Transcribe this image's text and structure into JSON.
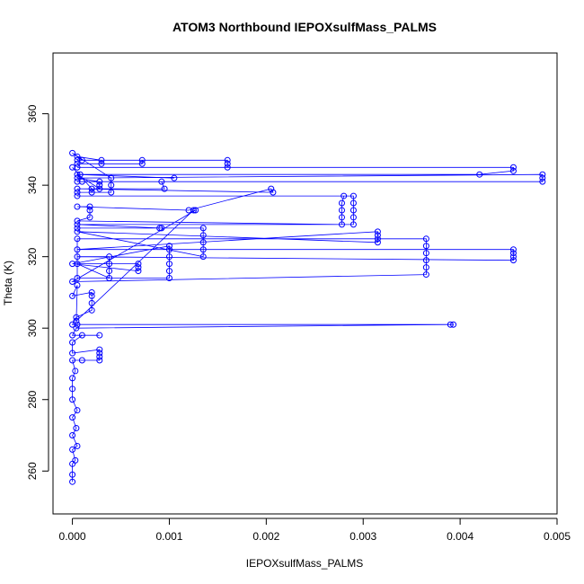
{
  "chart_data": {
    "type": "scatter",
    "title": "ATOM3 Northbound IEPOXsulfMass_PALMS",
    "xlabel": "IEPOXsulfMass_PALMS",
    "ylabel": "Theta (K)",
    "xlim": [
      -0.0002,
      0.005
    ],
    "ylim": [
      248,
      377
    ],
    "x_ticks": [
      0,
      0.001,
      0.002,
      0.003,
      0.004,
      0.005
    ],
    "x_tick_labels": [
      "0.000",
      "0.001",
      "0.002",
      "0.003",
      "0.004",
      "0.005"
    ],
    "y_ticks": [
      260,
      280,
      300,
      320,
      340,
      360
    ],
    "y_tick_labels": [
      "260",
      "280",
      "300",
      "320",
      "340",
      "360"
    ],
    "grid": false,
    "legend": "none",
    "series_color": "#0000ff",
    "marker": "open-circle",
    "connected": true,
    "points": [
      [
        0,
        257
      ],
      [
        0,
        259
      ],
      [
        0,
        262
      ],
      [
        3e-05,
        263
      ],
      [
        0,
        266
      ],
      [
        5e-05,
        267
      ],
      [
        0,
        270
      ],
      [
        4e-05,
        272
      ],
      [
        0,
        275
      ],
      [
        5e-05,
        277
      ],
      [
        0,
        280
      ],
      [
        0,
        283
      ],
      [
        0,
        286
      ],
      [
        3e-05,
        288
      ],
      [
        0,
        291
      ],
      [
        0.0001,
        291
      ],
      [
        0.00028,
        291
      ],
      [
        0.00028,
        292
      ],
      [
        0.00028,
        293
      ],
      [
        0.00028,
        294
      ],
      [
        0,
        293
      ],
      [
        0,
        296
      ],
      [
        0.0001,
        298
      ],
      [
        0.00028,
        298
      ],
      [
        0,
        298
      ],
      [
        4e-05,
        300
      ],
      [
        0.0039,
        301
      ],
      [
        0.00393,
        301
      ],
      [
        5e-05,
        301
      ],
      [
        0,
        301
      ],
      [
        4e-05,
        303
      ],
      [
        0.0002,
        305
      ],
      [
        0.0002,
        307
      ],
      [
        0.0002,
        309
      ],
      [
        0.0002,
        310
      ],
      [
        0,
        309
      ],
      [
        5e-05,
        312
      ],
      [
        4e-05,
        302
      ],
      [
        0.00125,
        333
      ],
      [
        0.00127,
        333
      ],
      [
        0,
        313
      ],
      [
        0.00365,
        315
      ],
      [
        0.00365,
        317
      ],
      [
        0.00365,
        319
      ],
      [
        0.00365,
        321
      ],
      [
        0.00365,
        323
      ],
      [
        0.00365,
        325
      ],
      [
        5e-05,
        325
      ],
      [
        5e-05,
        314
      ],
      [
        0.001,
        314
      ],
      [
        0.001,
        316
      ],
      [
        0.001,
        318
      ],
      [
        0.001,
        320
      ],
      [
        0.001,
        322
      ],
      [
        0.001,
        323
      ],
      [
        0,
        318
      ],
      [
        0.00068,
        316
      ],
      [
        0.00068,
        317
      ],
      [
        0.00068,
        318
      ],
      [
        5e-05,
        318
      ],
      [
        0.00038,
        314
      ],
      [
        0.00038,
        316
      ],
      [
        0.00038,
        318
      ],
      [
        0.00038,
        320
      ],
      [
        5e-05,
        320
      ],
      [
        0.00455,
        319
      ],
      [
        0.00455,
        320
      ],
      [
        0.00455,
        321
      ],
      [
        0.00455,
        322
      ],
      [
        5e-05,
        322
      ],
      [
        0.00315,
        327
      ],
      [
        0.00315,
        326
      ],
      [
        0.00315,
        325
      ],
      [
        0.00315,
        324
      ],
      [
        5e-05,
        327
      ],
      [
        0.00135,
        320
      ],
      [
        0.00135,
        322
      ],
      [
        0.00135,
        324
      ],
      [
        0.00135,
        326
      ],
      [
        0.00135,
        328
      ],
      [
        5e-05,
        328
      ],
      [
        0.0009,
        328
      ],
      [
        0.00092,
        328
      ],
      [
        5e-05,
        329
      ],
      [
        0.0029,
        329
      ],
      [
        0.0029,
        331
      ],
      [
        0.0029,
        333
      ],
      [
        0.0029,
        335
      ],
      [
        0.0029,
        337
      ],
      [
        5e-05,
        337
      ],
      [
        0.0028,
        337
      ],
      [
        0.00278,
        335
      ],
      [
        0.00278,
        333
      ],
      [
        0.00278,
        331
      ],
      [
        0.00278,
        329
      ],
      [
        5e-05,
        330
      ],
      [
        0.00018,
        331
      ],
      [
        0.00018,
        333
      ],
      [
        0.00018,
        334
      ],
      [
        5e-05,
        334
      ],
      [
        0.0012,
        333
      ],
      [
        0.00205,
        339
      ],
      [
        0.00207,
        338
      ],
      [
        5e-05,
        339
      ],
      [
        0.00095,
        339
      ],
      [
        0.00092,
        341
      ],
      [
        5e-05,
        341
      ],
      [
        0.0001,
        341
      ],
      [
        0.00485,
        341
      ],
      [
        0.00485,
        342
      ],
      [
        0.00485,
        343
      ],
      [
        5e-05,
        342
      ],
      [
        0.00028,
        341
      ],
      [
        0.00028,
        340
      ],
      [
        0.00028,
        339
      ],
      [
        5e-05,
        343
      ],
      [
        0.00105,
        342
      ],
      [
        8e-05,
        343
      ],
      [
        0.0042,
        343
      ],
      [
        0.00455,
        344
      ],
      [
        0.00455,
        345
      ],
      [
        5e-05,
        345
      ],
      [
        0.0016,
        345
      ],
      [
        0.0016,
        346
      ],
      [
        0.0016,
        347
      ],
      [
        5e-05,
        347
      ],
      [
        0.00072,
        347
      ],
      [
        0.00072,
        346
      ],
      [
        5e-05,
        346
      ],
      [
        0.0003,
        346
      ],
      [
        0.0003,
        347
      ],
      [
        5e-05,
        348
      ],
      [
        0.0001,
        347
      ],
      [
        0,
        349
      ],
      [
        0.0004,
        342
      ],
      [
        0.0004,
        340
      ],
      [
        0.0004,
        338
      ],
      [
        5e-05,
        338
      ],
      [
        0.0002,
        338
      ],
      [
        0.0002,
        339
      ],
      [
        0,
        345
      ]
    ]
  }
}
